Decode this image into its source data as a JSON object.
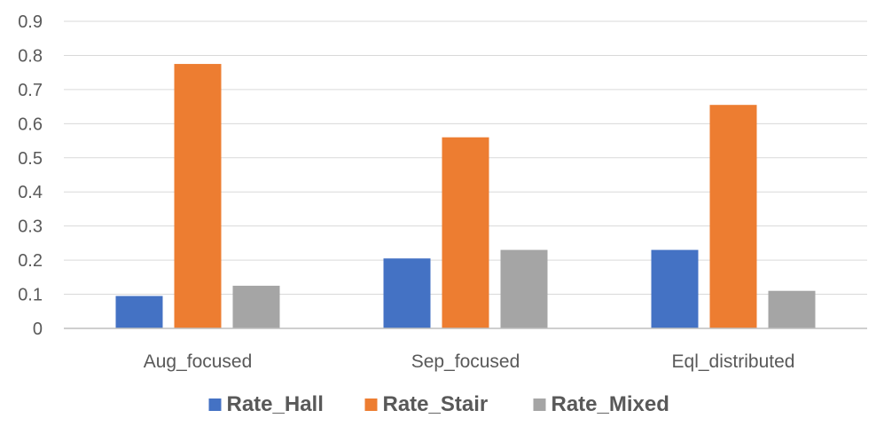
{
  "chart_data": {
    "type": "bar",
    "categories": [
      "Aug_focused",
      "Sep_focused",
      "Eql_distributed"
    ],
    "series": [
      {
        "name": "Rate_Hall",
        "values": [
          0.095,
          0.205,
          0.23
        ],
        "color": "#4472c4"
      },
      {
        "name": "Rate_Stair",
        "values": [
          0.775,
          0.56,
          0.655
        ],
        "color": "#ed7d31"
      },
      {
        "name": "Rate_Mixed",
        "values": [
          0.125,
          0.23,
          0.11
        ],
        "color": "#a5a5a5"
      }
    ],
    "ylim": [
      0,
      0.9
    ],
    "yticks": [
      "0",
      "0.1",
      "0.2",
      "0.3",
      "0.4",
      "0.5",
      "0.6",
      "0.7",
      "0.8",
      "0.9"
    ],
    "grid": true,
    "legend_position": "bottom"
  }
}
